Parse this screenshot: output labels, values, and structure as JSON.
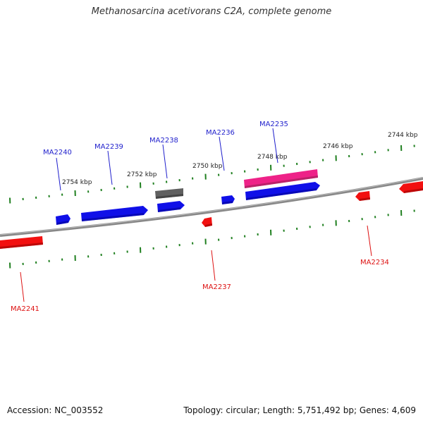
{
  "title": "Methanosarcina acetivorans C2A, complete genome",
  "footer": {
    "accession": "Accession: NC_003552",
    "summary": "Topology: circular; Length: 5,751,492 bp; Genes: 4,609"
  },
  "colors": {
    "forward_gene": "#1010e8",
    "reverse_gene": "#f21010",
    "pseudo_gene": "#606060",
    "rna_gene": "#ee2288",
    "tick": "#208020",
    "backbone": "#777777",
    "label_forward": "#1f1fcc",
    "label_reverse": "#dd1111"
  },
  "scale_labels": [
    "2754 kbp",
    "2752 kbp",
    "2750 kbp",
    "2748 kbp",
    "2746 kbp",
    "2744 kbp"
  ],
  "genes": [
    {
      "name": "MA2240",
      "strand": "forward"
    },
    {
      "name": "MA2239",
      "strand": "forward"
    },
    {
      "name": "MA2238",
      "strand": "forward"
    },
    {
      "name": "MA2236",
      "strand": "forward"
    },
    {
      "name": "MA2235",
      "strand": "forward"
    },
    {
      "name": "MA2241",
      "strand": "reverse"
    },
    {
      "name": "MA2237",
      "strand": "reverse"
    },
    {
      "name": "MA2234",
      "strand": "reverse"
    }
  ]
}
